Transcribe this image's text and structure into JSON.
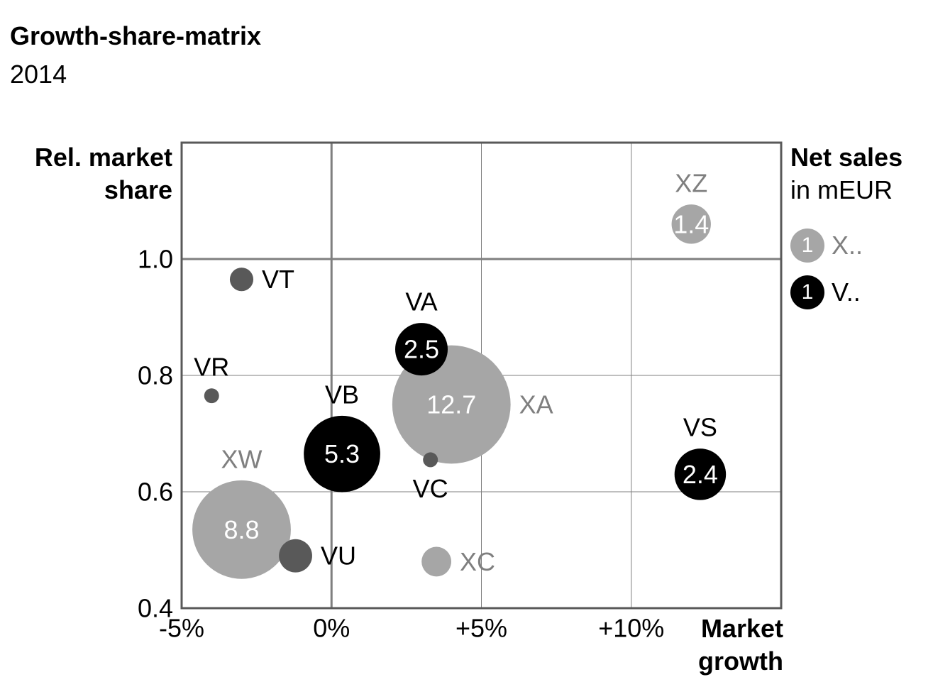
{
  "header": {
    "title": "Growth-share-matrix",
    "subtitle": "2014"
  },
  "chart_data": {
    "type": "scatter",
    "subtype": "bubble",
    "title": "Growth-share-matrix",
    "subtitle": "2014",
    "xlabel": "Market growth",
    "ylabel": "Rel. market share",
    "xlim": [
      -5,
      15
    ],
    "ylim": [
      0.4,
      1.2
    ],
    "x_ticks": [
      "-5%",
      "0%",
      "+5%",
      "+10%"
    ],
    "x_tick_values": [
      -5,
      0,
      5,
      10
    ],
    "y_ticks": [
      "0.4",
      "0.6",
      "0.8",
      "1.0"
    ],
    "y_tick_values": [
      0.4,
      0.6,
      0.8,
      1.0
    ],
    "reference_lines": {
      "x": 0,
      "y": 1.0
    },
    "grid": true,
    "legend": {
      "title": "Net sales",
      "subtitle": "in mEUR",
      "position": "right",
      "entries": [
        {
          "symbol": "1",
          "label": "X..",
          "color": "#a6a6a6"
        },
        {
          "symbol": "1",
          "label": "V..",
          "color": "#000000"
        }
      ]
    },
    "series": [
      {
        "group": "X",
        "color": "#a6a6a6",
        "label_color": "#7f7f7f",
        "points": [
          {
            "name": "XZ",
            "x": 12.0,
            "y": 1.06,
            "size": 1.4,
            "value_label": "1.4",
            "label_pos": "top"
          },
          {
            "name": "XA",
            "x": 4.0,
            "y": 0.75,
            "size": 12.7,
            "value_label": "12.7",
            "label_pos": "right"
          },
          {
            "name": "XW",
            "x": -3.0,
            "y": 0.535,
            "size": 8.8,
            "value_label": "8.8",
            "label_pos": "top"
          },
          {
            "name": "XC",
            "x": 3.5,
            "y": 0.48,
            "size": 0.8,
            "value_label": "",
            "label_pos": "right"
          }
        ]
      },
      {
        "group": "V",
        "color": "#000000",
        "small_color": "#595959",
        "label_color": "#000000",
        "points": [
          {
            "name": "VT",
            "x": -3.0,
            "y": 0.965,
            "size": 0.5,
            "value_label": "",
            "label_pos": "right"
          },
          {
            "name": "VA",
            "x": 3.0,
            "y": 0.845,
            "size": 2.5,
            "value_label": "2.5",
            "label_pos": "top"
          },
          {
            "name": "VR",
            "x": -4.0,
            "y": 0.765,
            "size": 0.2,
            "value_label": "",
            "label_pos": "top"
          },
          {
            "name": "VB",
            "x": 0.35,
            "y": 0.665,
            "size": 5.3,
            "value_label": "5.3",
            "label_pos": "top"
          },
          {
            "name": "VC",
            "x": 3.3,
            "y": 0.655,
            "size": 0.2,
            "value_label": "",
            "label_pos": "bottom"
          },
          {
            "name": "VS",
            "x": 12.3,
            "y": 0.63,
            "size": 2.4,
            "value_label": "2.4",
            "label_pos": "top"
          },
          {
            "name": "VU",
            "x": -1.2,
            "y": 0.49,
            "size": 1.0,
            "value_label": "",
            "label_pos": "right"
          }
        ]
      }
    ]
  }
}
